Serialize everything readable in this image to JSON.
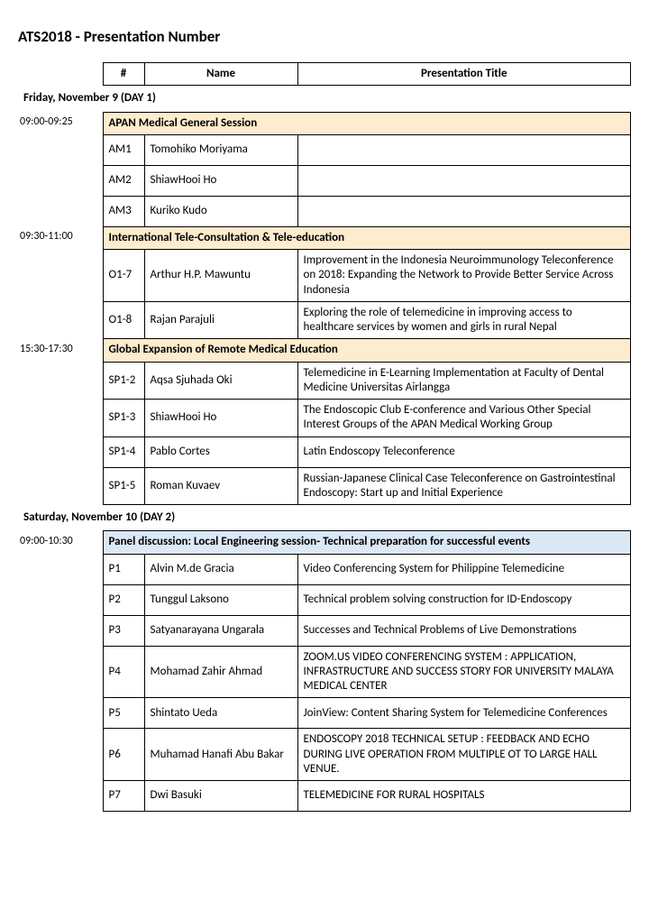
{
  "page_title": "ATS2018 - Presentation Number",
  "header": {
    "num": "#",
    "name": "Name",
    "title": "Presentation Title"
  },
  "colors": {
    "session_yellow": "#fdeccd",
    "session_blue": "#dbe9f6",
    "border": "#000000",
    "background": "#ffffff"
  },
  "day1": {
    "label": "Friday, November 9 (DAY 1)",
    "sessions": [
      {
        "time": "09:00-09:25",
        "title": "APAN Medical General Session",
        "color": "session_yellow",
        "rows": [
          {
            "num": "AM1",
            "name": "Tomohiko Moriyama",
            "title": ""
          },
          {
            "num": "AM2",
            "name": "ShiawHooi Ho",
            "title": ""
          },
          {
            "num": "AM3",
            "name": "Kuriko Kudo",
            "title": ""
          }
        ]
      },
      {
        "time": "09:30-11:00",
        "title": "International Tele-Consultation & Tele-education",
        "color": "session_yellow",
        "rows": [
          {
            "num": "O1-7",
            "name": "Arthur H.P. Mawuntu",
            "title": "Improvement in the Indonesia Neuroimmunology Teleconference on 2018: Expanding the Network to Provide Better Service Across Indonesia"
          },
          {
            "num": "O1-8",
            "name": "Rajan Parajuli",
            "title": "Exploring the role of telemedicine in improving access to healthcare services by women and girls in rural Nepal"
          }
        ]
      },
      {
        "time": "15:30-17:30",
        "title": "Global Expansion of Remote Medical Education",
        "color": "session_yellow",
        "rows": [
          {
            "num": "SP1-2",
            "name": "Aqsa Sjuhada Oki",
            "title": "Telemedicine in E-Learning Implementation at Faculty of Dental Medicine Universitas Airlangga"
          },
          {
            "num": "SP1-3",
            "name": "ShiawHooi Ho",
            "title": "The Endoscopic Club E-conference and Various Other Special Interest Groups of the APAN Medical Working Group"
          },
          {
            "num": "SP1-4",
            "name": "Pablo Cortes",
            "title": "Latin Endoscopy Teleconference"
          },
          {
            "num": "SP1-5",
            "name": "Roman Kuvaev",
            "title": "Russian-Japanese Clinical Case Teleconference on Gastrointestinal Endoscopy: Start up and Initial Experience"
          }
        ]
      }
    ]
  },
  "day2": {
    "label": "Saturday, November 10 (DAY 2)",
    "sessions": [
      {
        "time": "09:00-10:30",
        "title": "Panel discussion: Local Engineering session- Technical preparation for successful events",
        "color": "session_blue",
        "rows": [
          {
            "num": "P1",
            "name": "Alvin M.de Gracia",
            "title": "Video Conferencing System for Philippine Telemedicine"
          },
          {
            "num": "P2",
            "name": "Tunggul Laksono",
            "title": "Technical problem solving construction for ID-Endoscopy"
          },
          {
            "num": "P3",
            "name": "Satyanarayana Ungarala",
            "title": "Successes and Technical Problems of Live Demonstrations"
          },
          {
            "num": "P4",
            "name": "Mohamad Zahir Ahmad",
            "title": "ZOOM.US VIDEO CONFERENCING SYSTEM : APPLICATION, INFRASTRUCTURE AND SUCCESS STORY FOR UNIVERSITY MALAYA MEDICAL CENTER"
          },
          {
            "num": "P5",
            "name": "Shintato Ueda",
            "title": "JoinView: Content Sharing System for Telemedicine Conferences"
          },
          {
            "num": "P6",
            "name": "Muhamad Hanafi Abu Bakar",
            "title": "ENDOSCOPY 2018 TECHNICAL SETUP : FEEDBACK AND ECHO DURING LIVE OPERATION FROM MULTIPLE OT TO LARGE HALL VENUE."
          },
          {
            "num": "P7",
            "name": "Dwi Basuki",
            "title": "TELEMEDICINE FOR RURAL HOSPITALS"
          }
        ]
      }
    ]
  }
}
